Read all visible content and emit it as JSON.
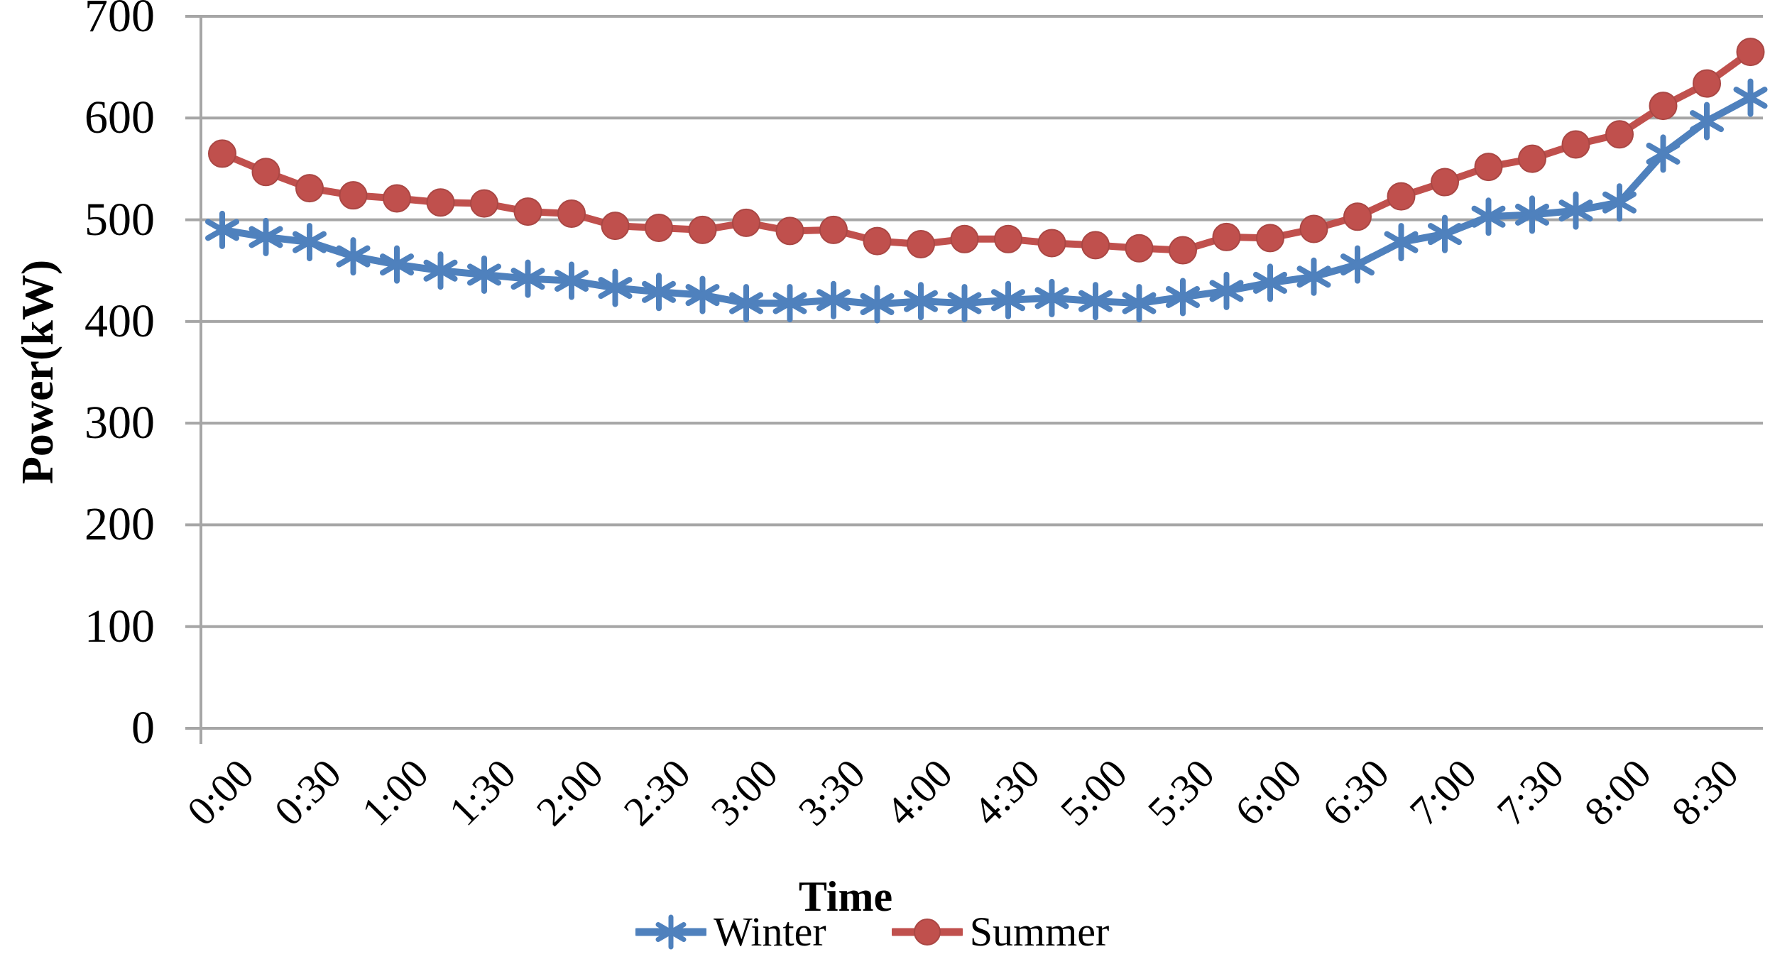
{
  "chart_data": {
    "type": "line",
    "title": "",
    "xlabel": "Time",
    "ylabel": "Power(kW)",
    "x": [
      "0:00",
      "0:15",
      "0:30",
      "0:45",
      "1:00",
      "1:15",
      "1:30",
      "1:45",
      "2:00",
      "2:15",
      "2:30",
      "2:45",
      "3:00",
      "3:15",
      "3:30",
      "3:45",
      "4:00",
      "4:15",
      "4:30",
      "4:45",
      "5:00",
      "5:15",
      "5:30",
      "5:45",
      "6:00",
      "6:15",
      "6:30",
      "6:45",
      "7:00",
      "7:15",
      "7:30",
      "7:45",
      "8:00",
      "8:15",
      "8:30",
      "8:45"
    ],
    "x_tick_labels": [
      "0:00",
      "0:30",
      "1:00",
      "1:30",
      "2:00",
      "2:30",
      "3:00",
      "3:30",
      "4:00",
      "4:30",
      "5:00",
      "5:30",
      "6:00",
      "6:30",
      "7:00",
      "7:30",
      "8:00",
      "8:30"
    ],
    "yticks": [
      0,
      100,
      200,
      300,
      400,
      500,
      600,
      700
    ],
    "ylim": [
      0,
      700
    ],
    "grid": "horizontal",
    "legend_position": "bottom",
    "axis_color": "#A6A6A6",
    "series": [
      {
        "name": "Winter",
        "color": "#4F81BD",
        "marker": "asterisk",
        "values": [
          490,
          483,
          478,
          464,
          456,
          450,
          446,
          442,
          440,
          433,
          429,
          426,
          418,
          418,
          421,
          417,
          420,
          418,
          421,
          423,
          420,
          418,
          424,
          430,
          438,
          444,
          456,
          478,
          486,
          503,
          505,
          509,
          517,
          565,
          597,
          620
        ]
      },
      {
        "name": "Summer",
        "color": "#C0504D",
        "marker": "circle",
        "values": [
          565,
          547,
          531,
          524,
          521,
          517,
          516,
          508,
          506,
          494,
          492,
          490,
          497,
          489,
          490,
          479,
          476,
          481,
          481,
          477,
          475,
          472,
          470,
          483,
          482,
          491,
          503,
          523,
          537,
          552,
          560,
          574,
          584,
          612,
          634,
          665
        ]
      }
    ]
  }
}
